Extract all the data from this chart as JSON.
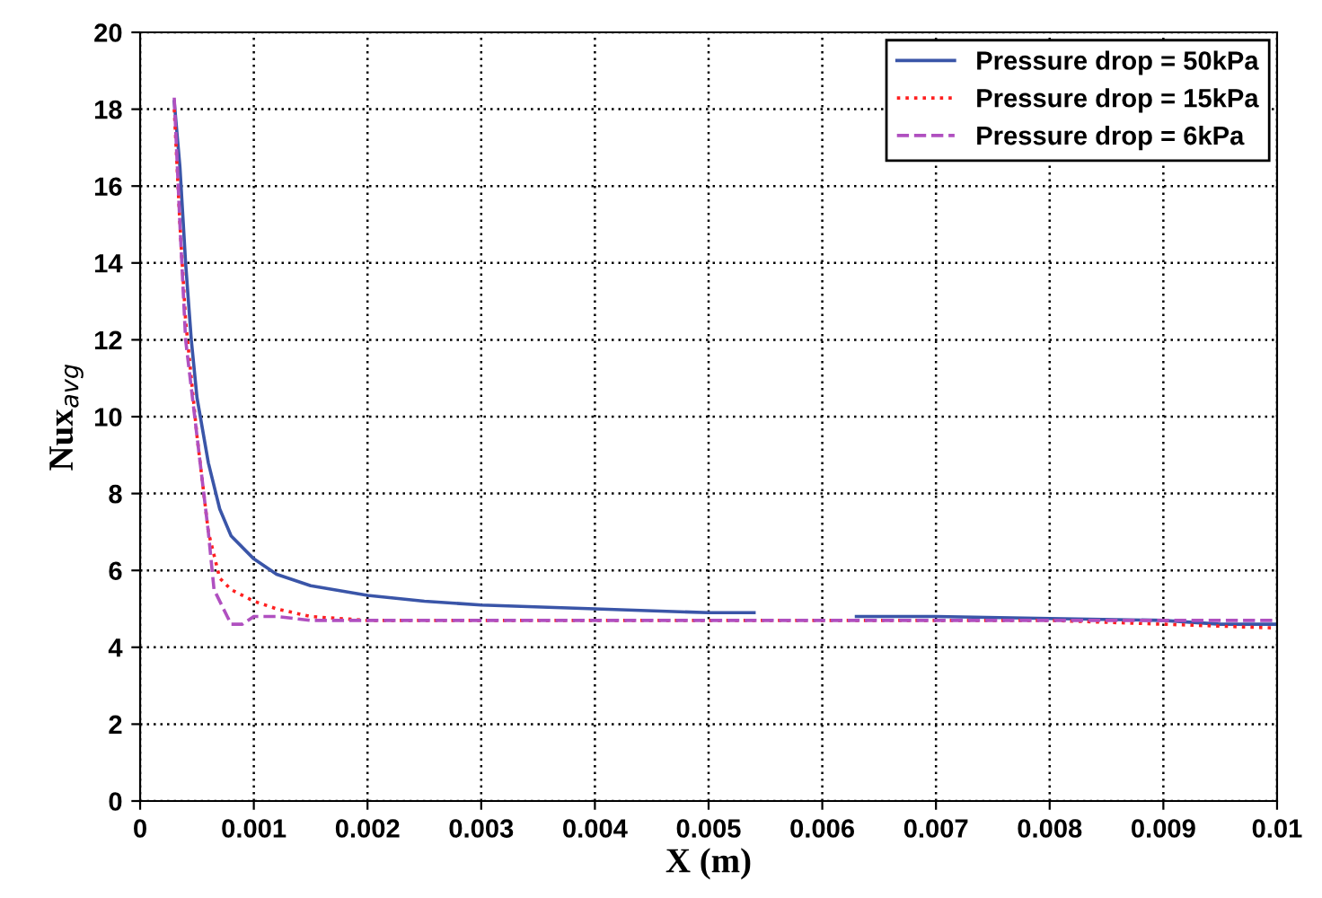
{
  "chart_data": {
    "type": "line",
    "xlabel": "X (m)",
    "ylabel": "Nux$_{avg}$",
    "xlim": [
      0,
      0.01
    ],
    "ylim": [
      0,
      20
    ],
    "xticks": [
      0,
      0.001,
      0.002,
      0.003,
      0.004,
      0.005,
      0.006,
      0.007,
      0.008,
      0.009,
      0.01
    ],
    "yticks": [
      0,
      2,
      4,
      6,
      8,
      10,
      12,
      14,
      16,
      18,
      20
    ],
    "grid": true,
    "legend": "top right",
    "series": [
      {
        "name": "Pressure drop = 50kPa",
        "color": "#3a55a8",
        "line_style": "solid",
        "x": [
          0.0003,
          0.00035,
          0.0004,
          0.00045,
          0.0005,
          0.0006,
          0.0007,
          0.0008,
          0.001,
          0.0012,
          0.0015,
          0.002,
          0.0025,
          0.003,
          0.004,
          0.005,
          0.0054,
          0.0058,
          0.0063,
          0.007,
          0.008,
          0.009,
          0.0095,
          0.01
        ],
        "values": [
          18.2,
          16.5,
          14,
          12,
          10.5,
          8.8,
          7.6,
          6.9,
          6.3,
          5.9,
          5.6,
          5.35,
          5.2,
          5.1,
          5.0,
          4.9,
          4.9,
          null,
          4.8,
          4.8,
          4.75,
          4.7,
          4.6,
          4.6
        ]
      },
      {
        "name": "Pressure drop = 15kPa",
        "color": "#ff2020",
        "line_style": "dotted",
        "x": [
          0.0003,
          0.00035,
          0.0004,
          0.00045,
          0.0005,
          0.0006,
          0.0007,
          0.0008,
          0.001,
          0.0012,
          0.0015,
          0.002,
          0.005,
          0.008,
          0.01
        ],
        "values": [
          18,
          15,
          12.5,
          11,
          9.5,
          7,
          5.8,
          5.5,
          5.2,
          5.0,
          4.8,
          4.7,
          4.7,
          4.7,
          4.5
        ]
      },
      {
        "name": "Pressure drop = 6kPa",
        "color": "#b050c0",
        "line_style": "dashed",
        "x": [
          0.0003,
          0.00035,
          0.0004,
          0.0005,
          0.0006,
          0.00065,
          0.0008,
          0.0009,
          0.001,
          0.0012,
          0.0015,
          0.005,
          0.01
        ],
        "values": [
          18.3,
          15,
          12,
          9.5,
          7,
          5.5,
          4.6,
          4.6,
          4.8,
          4.8,
          4.7,
          4.7,
          4.7
        ]
      }
    ]
  }
}
